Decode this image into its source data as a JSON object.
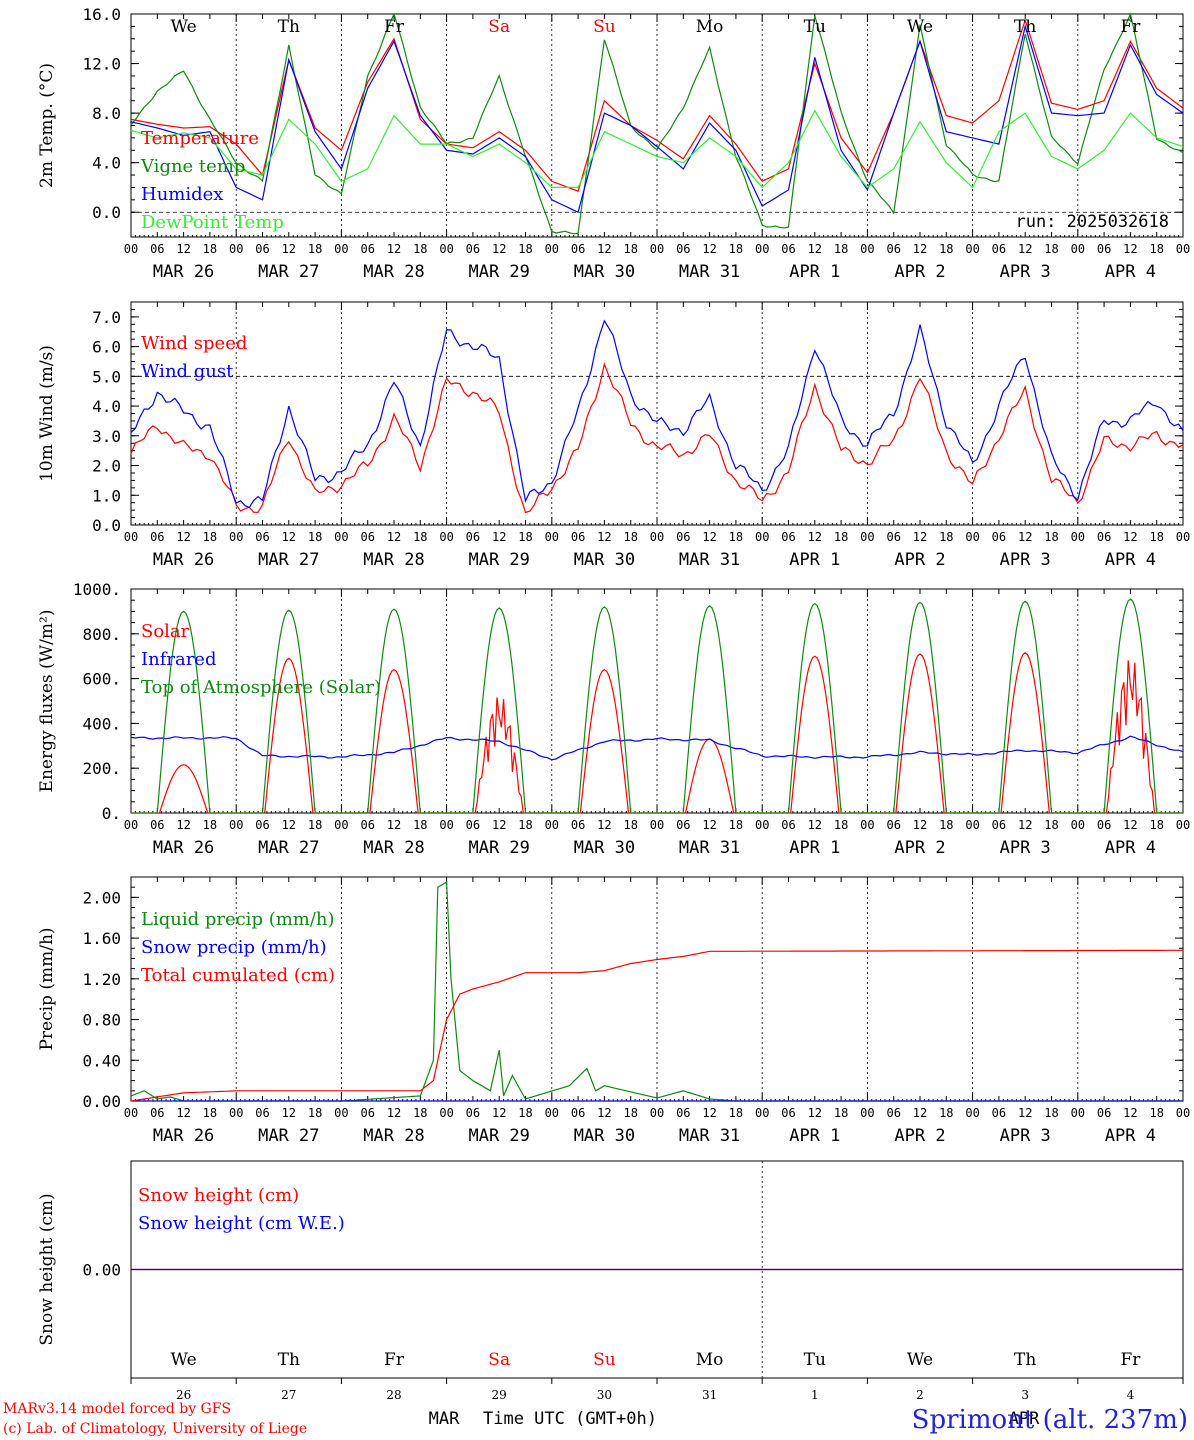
{
  "footer": {
    "model": "MARv3.14 model forced by GFS",
    "lab": "(c) Lab. of Climatology, University of Liege",
    "xlabel": "Time UTC (GMT+0h)",
    "month_left": "MAR",
    "month_right": "APR",
    "station": "Sprimont (alt. 237m)"
  },
  "colors": {
    "red": "#ff0000",
    "green": "#118811",
    "blue": "#0000ff",
    "lightgreen": "#33ee33",
    "weekend": "#ff0000",
    "station": "#2222dd"
  },
  "time_axis": {
    "hour_ticks": [
      "00",
      "06",
      "12",
      "18"
    ],
    "last_tick": "00",
    "dates": [
      "MAR 26",
      "MAR 27",
      "MAR 28",
      "MAR 29",
      "MAR 30",
      "MAR 31",
      "APR  1",
      "APR  2",
      "APR  3",
      "APR  4"
    ],
    "weekdays": [
      "We",
      "Th",
      "Fr",
      "Sa",
      "Su",
      "Mo",
      "Tu",
      "We",
      "Th",
      "Fr"
    ],
    "weekend": [
      false,
      false,
      false,
      true,
      true,
      false,
      false,
      false,
      false,
      false
    ],
    "day_numbers": [
      "26",
      "27",
      "28",
      "29",
      "30",
      "31",
      "1",
      "2",
      "3",
      "4"
    ]
  },
  "chart_data": [
    {
      "type": "line",
      "ylabel": "2m Temp. (°C)",
      "ylim": [
        -2.0,
        16.0
      ],
      "yticks": [
        "0.0",
        "4.0",
        "8.0",
        "12.0",
        "16.0"
      ],
      "ytick_values": [
        0,
        4,
        8,
        12,
        16
      ],
      "ref_line": 0.0,
      "x_unit": "hours since MAR 26 00 UTC",
      "annotation": "run: 2025032618",
      "legend": [
        "Temperature",
        "Vigne temp",
        "Humidex",
        "DewPoint Temp"
      ],
      "series": [
        {
          "name": "Temperature",
          "color": "red",
          "x": [
            0,
            6,
            12,
            18,
            24,
            30,
            36,
            42,
            48,
            54,
            60,
            66,
            72,
            78,
            84,
            90,
            96,
            102,
            108,
            114,
            120,
            126,
            132,
            138,
            144,
            150,
            156,
            162,
            168,
            174,
            180,
            186,
            192,
            198,
            204,
            210,
            216,
            222,
            228,
            234,
            240
          ],
          "values": [
            7.5,
            7.1,
            6.8,
            6.9,
            5.5,
            3.0,
            12.3,
            6.8,
            5.0,
            10.5,
            14.0,
            7.5,
            5.5,
            5.2,
            6.5,
            5.0,
            2.5,
            1.7,
            9.0,
            7.0,
            5.8,
            4.3,
            7.8,
            5.5,
            2.5,
            3.5,
            12.0,
            6.0,
            3.2,
            8.0,
            13.8,
            7.8,
            7.2,
            9.0,
            15.5,
            8.8,
            8.3,
            9.0,
            13.8,
            10.0,
            8.4
          ]
        },
        {
          "name": "Vigne temp",
          "color": "green",
          "x": [
            0,
            6,
            12,
            18,
            24,
            30,
            36,
            42,
            48,
            54,
            60,
            66,
            72,
            78,
            84,
            90,
            96,
            102,
            108,
            114,
            120,
            126,
            132,
            138,
            144,
            150,
            156,
            162,
            168,
            174,
            180,
            186,
            192,
            198,
            204,
            210,
            216,
            222,
            228,
            234,
            240
          ],
          "values": [
            7.0,
            9.8,
            11.4,
            7.5,
            4.0,
            2.5,
            13.5,
            3.0,
            1.5,
            11.0,
            16.0,
            8.5,
            5.5,
            6.0,
            11.0,
            4.5,
            -1.5,
            -1.8,
            14.0,
            7.0,
            5.0,
            8.5,
            13.2,
            4.5,
            -1.0,
            -1.3,
            16.0,
            8.0,
            2.5,
            0.0,
            15.0,
            5.5,
            3.0,
            2.5,
            14.5,
            6.0,
            4.0,
            11.5,
            16.0,
            6.0,
            4.7
          ]
        },
        {
          "name": "Humidex",
          "color": "blue",
          "x": [
            0,
            6,
            12,
            18,
            24,
            30,
            36,
            42,
            48,
            54,
            60,
            66,
            72,
            78,
            84,
            90,
            96,
            102,
            108,
            114,
            120,
            126,
            132,
            138,
            144,
            150,
            156,
            162,
            168,
            174,
            180,
            186,
            192,
            198,
            204,
            210,
            216,
            222,
            228,
            234,
            240
          ],
          "values": [
            7.3,
            6.8,
            6.2,
            6.5,
            2.0,
            1.0,
            12.3,
            6.5,
            3.5,
            10.0,
            13.8,
            7.8,
            5.0,
            4.7,
            6.0,
            4.5,
            1.0,
            0.0,
            8.0,
            7.0,
            5.3,
            3.5,
            7.2,
            5.0,
            0.5,
            1.8,
            12.5,
            5.0,
            1.8,
            8.0,
            13.8,
            6.5,
            6.0,
            5.5,
            15.0,
            8.0,
            7.8,
            8.0,
            13.5,
            9.5,
            8.0
          ]
        },
        {
          "name": "DewPoint Temp",
          "color": "lightgreen",
          "x": [
            0,
            6,
            12,
            18,
            24,
            30,
            36,
            42,
            48,
            54,
            60,
            66,
            72,
            78,
            84,
            90,
            96,
            102,
            108,
            114,
            120,
            126,
            132,
            138,
            144,
            150,
            156,
            162,
            168,
            174,
            180,
            186,
            192,
            198,
            204,
            210,
            216,
            222,
            228,
            234,
            240
          ],
          "values": [
            6.6,
            6.0,
            6.4,
            6.0,
            3.5,
            3.0,
            7.5,
            5.5,
            2.5,
            3.5,
            7.8,
            5.5,
            5.5,
            4.5,
            5.5,
            4.0,
            2.0,
            2.0,
            6.5,
            5.5,
            4.5,
            4.0,
            6.0,
            4.5,
            2.0,
            4.0,
            8.2,
            4.5,
            2.0,
            3.5,
            7.3,
            4.0,
            2.0,
            6.5,
            8.0,
            4.5,
            3.5,
            5.0,
            8.0,
            6.0,
            5.3
          ]
        }
      ]
    },
    {
      "type": "line",
      "ylabel": "10m Wind (m/s)",
      "ylim": [
        0.0,
        7.5
      ],
      "yticks": [
        "0.0",
        "1.0",
        "2.0",
        "3.0",
        "4.0",
        "5.0",
        "6.0",
        "7.0"
      ],
      "ytick_values": [
        0,
        1,
        2,
        3,
        4,
        5,
        6,
        7
      ],
      "ref_line": 5.0,
      "x_unit": "hours since MAR 26 00 UTC",
      "legend": [
        "Wind speed",
        "Wind gust"
      ],
      "series": [
        {
          "name": "Wind speed",
          "color": "red",
          "x": [
            0,
            6,
            12,
            18,
            24,
            30,
            36,
            42,
            48,
            54,
            60,
            66,
            72,
            78,
            84,
            90,
            96,
            102,
            108,
            114,
            120,
            126,
            132,
            138,
            144,
            150,
            156,
            162,
            168,
            174,
            180,
            186,
            192,
            198,
            204,
            210,
            216,
            222,
            228,
            234,
            240
          ],
          "values": [
            2.4,
            3.4,
            2.6,
            2.4,
            0.6,
            0.6,
            3.0,
            1.0,
            1.4,
            2.0,
            3.6,
            2.0,
            4.8,
            4.5,
            3.8,
            0.3,
            1.3,
            2.5,
            5.4,
            3.4,
            2.6,
            2.4,
            3.0,
            1.5,
            0.8,
            1.8,
            4.7,
            2.5,
            2.1,
            2.8,
            5.0,
            2.5,
            1.3,
            3.0,
            4.5,
            1.5,
            0.8,
            2.8,
            2.7,
            3.0,
            2.7
          ]
        },
        {
          "name": "Wind gust",
          "color": "blue",
          "x": [
            0,
            6,
            12,
            18,
            24,
            30,
            36,
            42,
            48,
            54,
            60,
            66,
            72,
            78,
            84,
            90,
            96,
            102,
            108,
            114,
            120,
            126,
            132,
            138,
            144,
            150,
            156,
            162,
            168,
            174,
            180,
            186,
            192,
            198,
            204,
            210,
            216,
            222,
            228,
            234,
            240
          ],
          "values": [
            3.0,
            4.5,
            3.8,
            3.3,
            0.8,
            0.8,
            4.0,
            1.5,
            1.8,
            2.7,
            4.8,
            2.7,
            6.5,
            6.0,
            5.6,
            0.8,
            1.5,
            3.8,
            7.0,
            4.4,
            3.4,
            3.2,
            4.2,
            2.0,
            1.2,
            2.5,
            6.1,
            3.5,
            2.7,
            3.8,
            6.5,
            3.5,
            2.0,
            4.0,
            5.8,
            2.2,
            1.0,
            3.5,
            3.5,
            4.2,
            3.0
          ]
        }
      ]
    },
    {
      "type": "line",
      "ylabel": "Energy fluxes (W/m²)",
      "ylim": [
        0,
        1000
      ],
      "yticks": [
        "0.",
        "200.",
        "400.",
        "600.",
        "800.",
        "1000."
      ],
      "ytick_values": [
        0,
        200,
        400,
        600,
        800,
        1000
      ],
      "x_unit": "hours since MAR 26 00 UTC",
      "legend": [
        "Solar",
        "Infrared",
        "Top of Atmosphere (Solar)"
      ],
      "series": [
        {
          "name": "Solar",
          "color": "red",
          "daily_peak": [
            215,
            690,
            640,
            530,
            640,
            330,
            700,
            710,
            715,
            700
          ]
        },
        {
          "name": "Infrared",
          "color": "blue",
          "x": [
            0,
            24,
            30,
            48,
            60,
            72,
            84,
            96,
            108,
            120,
            132,
            144,
            156,
            168,
            180,
            192,
            204,
            216,
            228,
            240
          ],
          "values": [
            335,
            335,
            255,
            250,
            270,
            335,
            320,
            240,
            320,
            330,
            325,
            255,
            250,
            250,
            270,
            260,
            280,
            270,
            340,
            270
          ]
        },
        {
          "name": "Top of Atmosphere (Solar)",
          "color": "green",
          "daily_peak": [
            900,
            905,
            910,
            915,
            920,
            925,
            935,
            940,
            945,
            955
          ]
        }
      ]
    },
    {
      "type": "line",
      "ylabel": "Precip (mm/h)",
      "ylim": [
        0.0,
        2.2
      ],
      "yticks": [
        "0.00",
        "0.40",
        "0.80",
        "1.20",
        "1.60",
        "2.00"
      ],
      "ytick_values": [
        0,
        0.4,
        0.8,
        1.2,
        1.6,
        2.0
      ],
      "x_unit": "hours since MAR 26 00 UTC",
      "legend": [
        "Liquid precip (mm/h)",
        "Snow precip (mm/h)",
        "Total cumulated (cm)"
      ],
      "series": [
        {
          "name": "Liquid precip (mm/h)",
          "color": "green",
          "x": [
            0,
            3,
            6,
            9,
            12,
            24,
            48,
            66,
            69,
            70,
            72,
            73,
            75,
            78,
            82,
            84,
            85,
            87,
            90,
            100,
            104,
            106,
            108,
            120,
            126,
            132,
            138,
            240
          ],
          "values": [
            0.05,
            0.1,
            0.02,
            0.04,
            0.0,
            0.0,
            0.0,
            0.05,
            0.4,
            2.1,
            2.15,
            1.2,
            0.3,
            0.2,
            0.1,
            0.5,
            0.05,
            0.25,
            0.02,
            0.15,
            0.32,
            0.1,
            0.15,
            0.03,
            0.1,
            0.02,
            0.0,
            0.0
          ]
        },
        {
          "name": "Snow precip (mm/h)",
          "color": "blue",
          "x": [
            0,
            240
          ],
          "values": [
            0.0,
            0.0
          ]
        },
        {
          "name": "Total cumulated (cm)",
          "color": "red",
          "x": [
            0,
            12,
            24,
            48,
            66,
            69,
            72,
            75,
            78,
            84,
            90,
            102,
            108,
            114,
            120,
            126,
            132,
            240
          ],
          "values": [
            0.0,
            0.08,
            0.1,
            0.1,
            0.1,
            0.2,
            0.8,
            1.05,
            1.1,
            1.17,
            1.26,
            1.26,
            1.28,
            1.35,
            1.39,
            1.42,
            1.47,
            1.48
          ]
        }
      ]
    },
    {
      "type": "line",
      "ylabel": "Snow height (cm)",
      "ylim": [
        -1.0,
        1.0
      ],
      "yticks": [
        "0.00"
      ],
      "ytick_values": [
        0
      ],
      "x_unit": "hours since MAR 26 00 UTC",
      "legend": [
        "Snow height (cm)",
        "Snow height (cm W.E.)"
      ],
      "series": [
        {
          "name": "Snow height (cm)",
          "color": "red",
          "x": [
            0,
            240
          ],
          "values": [
            0.0,
            0.0
          ]
        },
        {
          "name": "Snow height (cm W.E.)",
          "color": "blue",
          "x": [
            0,
            240
          ],
          "values": [
            0.0,
            0.0
          ]
        }
      ]
    }
  ]
}
